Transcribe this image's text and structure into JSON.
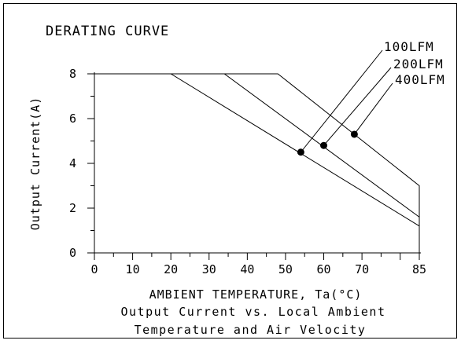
{
  "chart_data": {
    "type": "line",
    "title": "DERATING CURVE",
    "xlabel": "AMBIENT TEMPERATURE, Ta(°C)",
    "ylabel": "Output Current(A)",
    "subtitle_lines": [
      "Output Current vs. Local Ambient",
      "Temperature and Air Velocity"
    ],
    "xlim": [
      0,
      85
    ],
    "ylim": [
      0,
      8
    ],
    "x_tick_labels": [
      "0",
      "10",
      "20",
      "30",
      "40",
      "50",
      "60",
      "70",
      "85"
    ],
    "y_tick_labels": [
      "0",
      "2",
      "4",
      "6",
      "8"
    ],
    "grid": false,
    "series": [
      {
        "name": "100LFM",
        "x": [
          0,
          20,
          85
        ],
        "y": [
          8,
          8,
          1.2
        ],
        "marker": {
          "x": 54,
          "y": 4.5
        }
      },
      {
        "name": "200LFM",
        "x": [
          0,
          34,
          85
        ],
        "y": [
          8,
          8,
          1.6
        ],
        "marker": {
          "x": 60,
          "y": 4.8
        }
      },
      {
        "name": "400LFM",
        "x": [
          0,
          48,
          85,
          85
        ],
        "y": [
          8,
          8,
          3.0,
          0
        ],
        "marker": {
          "x": 68,
          "y": 5.3
        }
      }
    ]
  }
}
